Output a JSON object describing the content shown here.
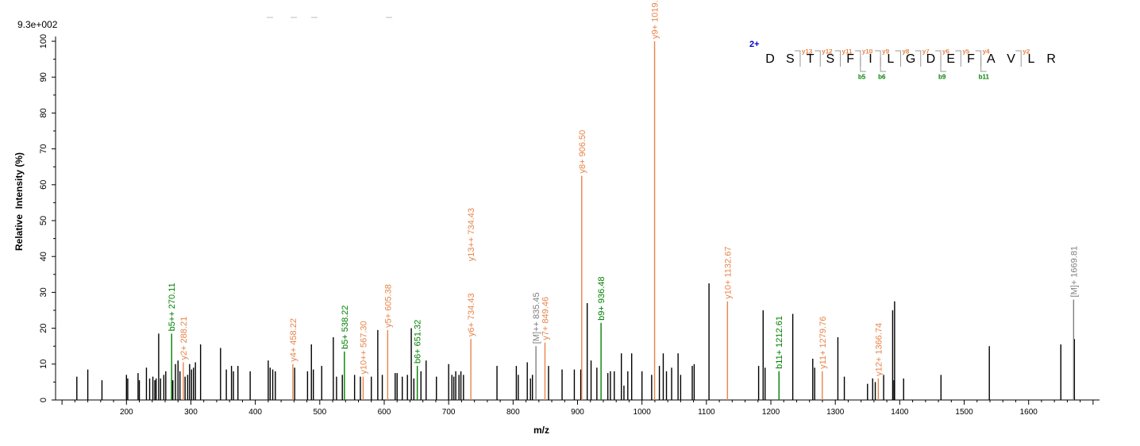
{
  "chart_data": {
    "type": "bar",
    "scale_label": "9.3e+002",
    "xlabel": "m/z",
    "ylabel": "Relative  Intensity (%)",
    "xlim": [
      100,
      1700
    ],
    "ylim": [
      0,
      100
    ],
    "xticks": [
      200,
      300,
      400,
      500,
      600,
      700,
      800,
      900,
      1000,
      1100,
      1200,
      1300,
      1400,
      1500,
      1600
    ],
    "yticks": [
      0,
      10,
      20,
      30,
      40,
      50,
      60,
      70,
      80,
      90,
      100
    ],
    "precursor_charge": "2+",
    "sequence": [
      "D",
      "S",
      "T",
      "S",
      "F",
      "I",
      "L",
      "G",
      "D",
      "E",
      "F",
      "A",
      "V",
      "L",
      "R"
    ],
    "y_ion_marks": [
      {
        "after": 2,
        "label": "y13"
      },
      {
        "after": 3,
        "label": "y12"
      },
      {
        "after": 4,
        "label": "y11"
      },
      {
        "after": 5,
        "label": "y10"
      },
      {
        "after": 6,
        "label": "y9"
      },
      {
        "after": 7,
        "label": "y8"
      },
      {
        "after": 8,
        "label": "y7"
      },
      {
        "after": 9,
        "label": "y6"
      },
      {
        "after": 10,
        "label": "y5"
      },
      {
        "after": 11,
        "label": "y4"
      },
      {
        "after": 13,
        "label": "y2"
      }
    ],
    "b_ion_marks": [
      {
        "after": 5,
        "label": "b5"
      },
      {
        "after": 6,
        "label": "b6"
      },
      {
        "after": 9,
        "label": "b9"
      },
      {
        "after": 11,
        "label": "b11"
      }
    ],
    "colors": {
      "y": "#e8844a",
      "b": "#008000",
      "M": "#808080",
      "unassigned": "#000000"
    },
    "annotated_peaks": [
      {
        "mz": 270.11,
        "intensity": 18.5,
        "label": "b5++ 270.11",
        "ion": "b"
      },
      {
        "mz": 288.21,
        "intensity": 10.5,
        "label": "y2+ 288.21",
        "ion": "y"
      },
      {
        "mz": 458.22,
        "intensity": 10.0,
        "label": "y4+ 458.22",
        "ion": "y"
      },
      {
        "mz": 538.22,
        "intensity": 13.5,
        "label": "b5+ 538.22",
        "ion": "b"
      },
      {
        "mz": 567.3,
        "intensity": 6.5,
        "label": "y10++ 567.30",
        "ion": "y"
      },
      {
        "mz": 605.38,
        "intensity": 19.5,
        "label": "y5+ 605.38",
        "ion": "y"
      },
      {
        "mz": 651.32,
        "intensity": 9.5,
        "label": "b6+ 651.32",
        "ion": "b"
      },
      {
        "mz": 734.43,
        "intensity": 17.0,
        "label": "y6+ 734.43",
        "ion": "y"
      },
      {
        "mz": 734.43,
        "intensity": 38.0,
        "label": "y13++ 734.43",
        "ion": "y",
        "label_only": true
      },
      {
        "mz": 835.45,
        "intensity": 15.0,
        "label": "[M]++ 835.45",
        "ion": "M"
      },
      {
        "mz": 849.46,
        "intensity": 16.0,
        "label": "y7+ 849.46",
        "ion": "y"
      },
      {
        "mz": 906.5,
        "intensity": 62.5,
        "label": "y8+ 906.50",
        "ion": "y"
      },
      {
        "mz": 936.48,
        "intensity": 21.5,
        "label": "b9+ 936.48",
        "ion": "b"
      },
      {
        "mz": 1019.56,
        "intensity": 100.0,
        "label": "y9+ 1019.56",
        "ion": "y"
      },
      {
        "mz": 1132.67,
        "intensity": 27.5,
        "label": "y10+ 1132.67",
        "ion": "y"
      },
      {
        "mz": 1212.61,
        "intensity": 8.0,
        "label": "b11+ 1212.61",
        "ion": "b"
      },
      {
        "mz": 1279.76,
        "intensity": 8.0,
        "label": "y11+ 1279.76",
        "ion": "y"
      },
      {
        "mz": 1366.74,
        "intensity": 6.0,
        "label": "y12+ 1366.74",
        "ion": "y"
      },
      {
        "mz": 1669.81,
        "intensity": 28.0,
        "label": "[M]+ 1669.81",
        "ion": "M"
      }
    ],
    "other_peaks": [
      [
        123,
        6.5
      ],
      [
        140,
        8.5
      ],
      [
        162,
        5.5
      ],
      [
        200,
        7.0
      ],
      [
        202,
        6.0
      ],
      [
        218,
        7.5
      ],
      [
        220,
        5.5
      ],
      [
        231,
        9.0
      ],
      [
        236,
        6.0
      ],
      [
        241,
        6.5
      ],
      [
        244,
        5.5
      ],
      [
        246,
        6.0
      ],
      [
        250,
        18.5
      ],
      [
        253,
        6.0
      ],
      [
        258,
        7.0
      ],
      [
        261,
        8.0
      ],
      [
        270,
        5.5
      ],
      [
        272,
        5.5
      ],
      [
        276,
        10.0
      ],
      [
        280,
        11.0
      ],
      [
        283,
        8.0
      ],
      [
        291,
        6.5
      ],
      [
        295,
        7.0
      ],
      [
        298,
        10.0
      ],
      [
        301,
        8.5
      ],
      [
        304,
        9.0
      ],
      [
        307,
        10.5
      ],
      [
        315,
        15.5
      ],
      [
        346,
        14.5
      ],
      [
        355,
        8.5
      ],
      [
        363,
        9.5
      ],
      [
        366,
        8.0
      ],
      [
        373,
        9.5
      ],
      [
        392,
        8.0
      ],
      [
        420,
        11.0
      ],
      [
        423,
        9.0
      ],
      [
        427,
        8.5
      ],
      [
        431,
        8.0
      ],
      [
        461,
        9.0
      ],
      [
        481,
        8.0
      ],
      [
        487,
        15.5
      ],
      [
        490,
        8.5
      ],
      [
        503,
        9.5
      ],
      [
        521,
        17.5
      ],
      [
        526,
        6.5
      ],
      [
        535,
        7.0
      ],
      [
        554,
        7.0
      ],
      [
        563,
        6.5
      ],
      [
        580,
        6.5
      ],
      [
        590,
        19.5
      ],
      [
        597,
        7.0
      ],
      [
        617,
        7.5
      ],
      [
        620,
        7.5
      ],
      [
        628,
        6.5
      ],
      [
        636,
        7.0
      ],
      [
        642,
        20.0
      ],
      [
        646,
        6.0
      ],
      [
        657,
        8.0
      ],
      [
        665,
        11.0
      ],
      [
        681,
        6.5
      ],
      [
        700,
        10.0
      ],
      [
        705,
        7.0
      ],
      [
        708,
        6.5
      ],
      [
        711,
        8.0
      ],
      [
        716,
        7.0
      ],
      [
        719,
        8.0
      ],
      [
        723,
        7.0
      ],
      [
        775,
        9.5
      ],
      [
        805,
        9.5
      ],
      [
        808,
        7.0
      ],
      [
        822,
        10.5
      ],
      [
        827,
        6.0
      ],
      [
        830,
        7.0
      ],
      [
        855,
        9.5
      ],
      [
        876,
        8.5
      ],
      [
        895,
        8.5
      ],
      [
        905,
        8.5
      ],
      [
        915,
        27.0
      ],
      [
        921,
        11.0
      ],
      [
        930,
        9.0
      ],
      [
        947,
        7.5
      ],
      [
        951,
        8.0
      ],
      [
        957,
        8.0
      ],
      [
        968,
        13.0
      ],
      [
        972,
        4.0
      ],
      [
        978,
        8.0
      ],
      [
        984,
        13.0
      ],
      [
        1000,
        8.0
      ],
      [
        1015,
        7.0
      ],
      [
        1027,
        9.5
      ],
      [
        1033,
        13.0
      ],
      [
        1038,
        8.0
      ],
      [
        1046,
        9.0
      ],
      [
        1056,
        13.0
      ],
      [
        1060,
        7.0
      ],
      [
        1078,
        9.5
      ],
      [
        1081,
        10.0
      ],
      [
        1104,
        32.5
      ],
      [
        1181,
        9.5
      ],
      [
        1188,
        25.0
      ],
      [
        1191,
        9.0
      ],
      [
        1234,
        24.0
      ],
      [
        1265,
        11.5
      ],
      [
        1268,
        9.0
      ],
      [
        1304,
        17.5
      ],
      [
        1314,
        6.5
      ],
      [
        1350,
        4.5
      ],
      [
        1358,
        6.0
      ],
      [
        1362,
        5.0
      ],
      [
        1375,
        7.0
      ],
      [
        1389,
        25.0
      ],
      [
        1391,
        5.5
      ],
      [
        1392,
        27.5
      ],
      [
        1406,
        6.0
      ],
      [
        1464,
        7.0
      ],
      [
        1539,
        15.0
      ],
      [
        1650,
        15.5
      ],
      [
        1671,
        17.0
      ]
    ],
    "grid": false
  }
}
